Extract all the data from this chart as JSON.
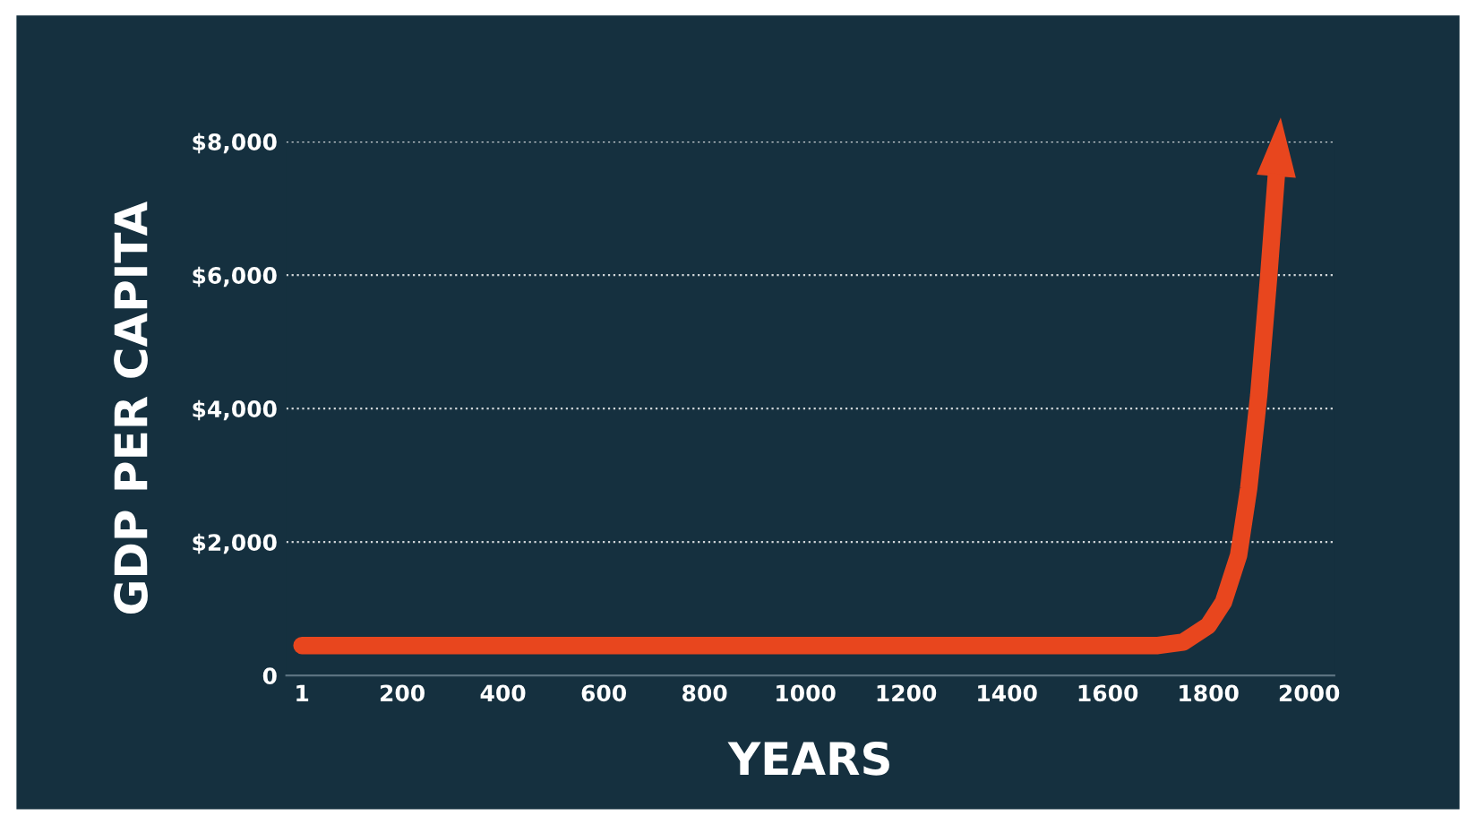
{
  "chart_data": {
    "type": "line",
    "xlabel": "YEARS",
    "ylabel": "GDP PER CAPITA",
    "x": [
      1,
      1700,
      1750,
      1800,
      1830,
      1860,
      1880,
      1900,
      1920,
      1935
    ],
    "series": [
      {
        "color": "#e8461e",
        "values": [
          450,
          450,
          500,
          750,
          1100,
          1800,
          2800,
          4200,
          6000,
          7500
        ]
      }
    ],
    "xlim": [
      -30,
      2050
    ],
    "ylim": [
      0,
      8000
    ],
    "xticks": [
      1,
      200,
      400,
      600,
      800,
      1000,
      1200,
      1400,
      1600,
      1800,
      2000
    ],
    "yticks": [
      0,
      {
        "value": 2000,
        "label": "$2,000"
      },
      {
        "value": 4000,
        "label": "$4,000"
      },
      {
        "value": 6000,
        "label": "$6,000"
      },
      {
        "value": 8000,
        "label": "$8,000"
      }
    ],
    "grid": "y",
    "legend": false,
    "marker": "none",
    "line_style": "solid"
  }
}
